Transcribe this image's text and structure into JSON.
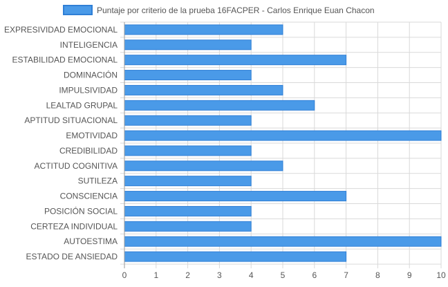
{
  "chart_data": {
    "type": "bar",
    "orientation": "horizontal",
    "categories": [
      "EXPRESIVIDAD EMOCIONAL",
      "INTELIGENCIA",
      "ESTABILIDAD EMOCIONAL",
      "DOMINACIÓN",
      "IMPULSIVIDAD",
      "LEALTAD GRUPAL",
      "APTITUD SITUACIONAL",
      "EMOTIVIDAD",
      "CREDIBILIDAD",
      "ACTITUD COGNITIVA",
      "SUTILEZA",
      "CONSCIENCIA",
      "POSICIÓN SOCIAL",
      "CERTEZA INDIVIDUAL",
      "AUTOESTIMA",
      "ESTADO DE ANSIEDAD"
    ],
    "series": [
      {
        "name": "Puntaje por criterio de la prueba 16FACPER - Carlos Enrique Euan Chacon",
        "values": [
          5,
          4,
          7,
          4,
          5,
          6,
          4,
          10,
          4,
          5,
          4,
          7,
          4,
          4,
          10,
          7
        ]
      }
    ],
    "title": "",
    "xlabel": "",
    "ylabel": "",
    "xlim": [
      0,
      10
    ],
    "xticks": [
      "0",
      "1",
      "2",
      "3",
      "4",
      "5",
      "6",
      "7",
      "8",
      "9",
      "10"
    ],
    "grid": true,
    "legend_position": "top",
    "colors": {
      "bar_fill": "#4a9ae8",
      "bar_stroke": "#2f7fd6",
      "grid": "#d9d9d9",
      "axis": "#9a9a9a",
      "label": "#555555"
    }
  }
}
